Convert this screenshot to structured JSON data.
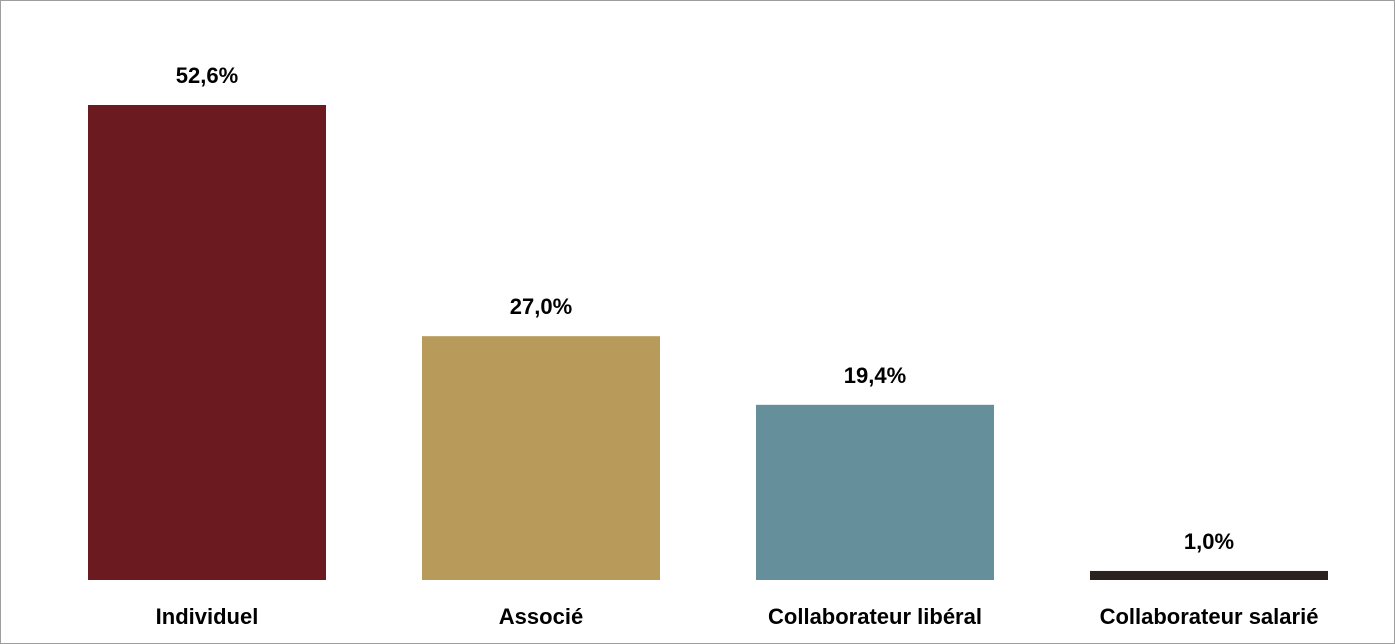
{
  "chart_data": {
    "type": "bar",
    "title": "",
    "xlabel": "",
    "ylabel": "",
    "categories": [
      "Individuel",
      "Associé",
      "Collaborateur libéral",
      "Collaborateur salarié"
    ],
    "values": [
      52.6,
      27.0,
      19.4,
      1.0
    ],
    "value_labels": [
      "52,6%",
      "27,0%",
      "19,4%",
      "1,0%"
    ],
    "unit": "%",
    "ylim": [
      0,
      52.6
    ],
    "grid": false,
    "legend": "none",
    "colors": [
      "#6b1a20",
      "#b89a5a",
      "#668f9c",
      "#2b2220"
    ]
  }
}
